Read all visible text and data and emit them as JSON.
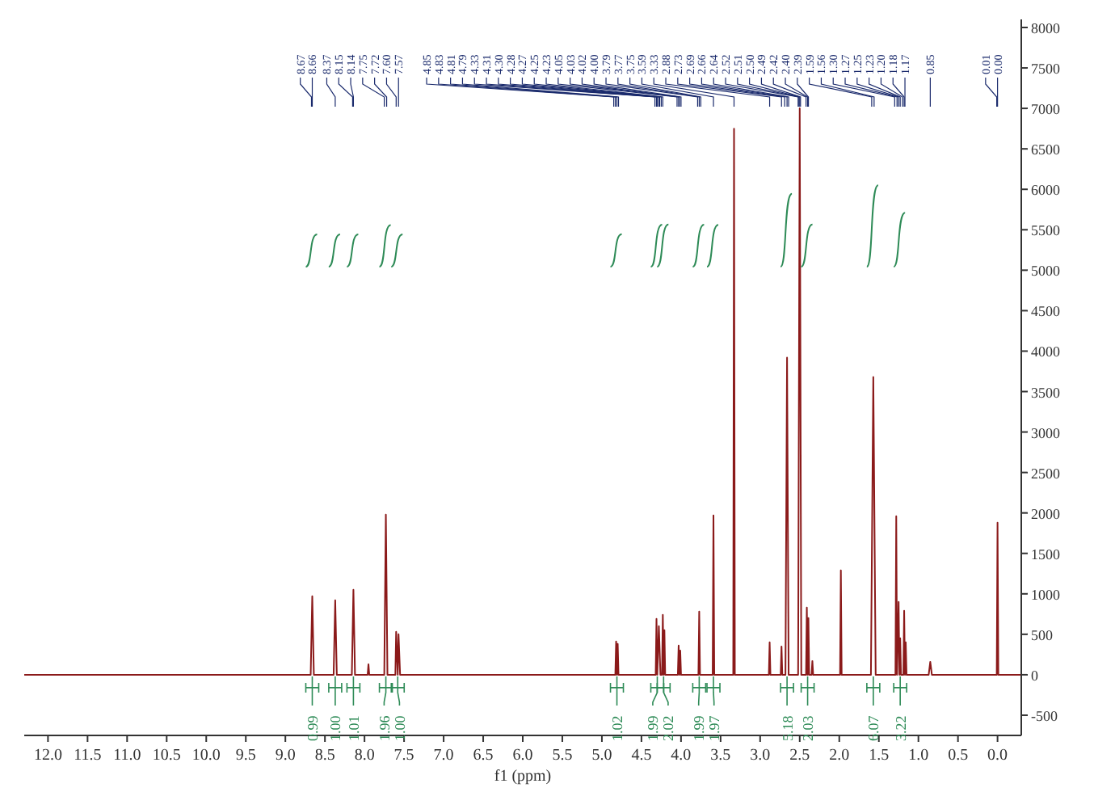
{
  "chart_data": {
    "type": "line",
    "xlabel": "f1 (ppm)",
    "xlim": [
      12.3,
      -0.3
    ],
    "xticks": [
      {
        "value": 12,
        "label": "12.0"
      },
      {
        "value": 11.5,
        "label": "11.5"
      },
      {
        "value": 11,
        "label": "11.0"
      },
      {
        "value": 10.5,
        "label": "10.5"
      },
      {
        "value": 10,
        "label": "10.0"
      },
      {
        "value": 9.5,
        "label": "9.5"
      },
      {
        "value": 9,
        "label": "9.0"
      },
      {
        "value": 8.5,
        "label": "8.5"
      },
      {
        "value": 8,
        "label": "8.0"
      },
      {
        "value": 7.5,
        "label": "7.5"
      },
      {
        "value": 7,
        "label": "7.0"
      },
      {
        "value": 6.5,
        "label": "6.5"
      },
      {
        "value": 6,
        "label": "6.0"
      },
      {
        "value": 5.5,
        "label": "5.5"
      },
      {
        "value": 5,
        "label": "5.0"
      },
      {
        "value": 4.5,
        "label": "4.5"
      },
      {
        "value": 4,
        "label": "4.0"
      },
      {
        "value": 3.5,
        "label": "3.5"
      },
      {
        "value": 3,
        "label": "3.0"
      },
      {
        "value": 2.5,
        "label": "2.5"
      },
      {
        "value": 2,
        "label": "2.0"
      },
      {
        "value": 1.5,
        "label": "1.5"
      },
      {
        "value": 1,
        "label": "1.0"
      },
      {
        "value": 0.5,
        "label": "0.5"
      },
      {
        "value": 0,
        "label": "0.0"
      }
    ],
    "ylim": [
      -750,
      8100
    ],
    "yticks": [
      -500,
      0,
      500,
      1000,
      1500,
      2000,
      2500,
      3000,
      3500,
      4000,
      4500,
      5000,
      5500,
      6000,
      6500,
      7000,
      7500,
      8000
    ],
    "grid": false,
    "marker": "none",
    "line_style": "solid",
    "series": [
      {
        "color": "#8b1a1a",
        "x": [
          12.3,
          8.68,
          8.66,
          8.64,
          8.39,
          8.37,
          8.35,
          8.16,
          8.14,
          8.12,
          7.96,
          7.95,
          7.94,
          7.75,
          7.73,
          7.71,
          7.61,
          7.6,
          7.58,
          7.57,
          7.55,
          4.83,
          4.82,
          4.81,
          4.8,
          4.79,
          4.32,
          4.31,
          4.3,
          4.28,
          4.26,
          4.24,
          4.23,
          4.22,
          4.21,
          4.2,
          4.04,
          4.03,
          4.02,
          4.01,
          4.0,
          3.78,
          3.77,
          3.76,
          3.6,
          3.59,
          3.58,
          3.34,
          3.33,
          3.32,
          2.89,
          2.88,
          2.87,
          2.74,
          2.73,
          2.72,
          2.68,
          2.66,
          2.64,
          2.52,
          2.5,
          2.48,
          2.42,
          2.41,
          2.4,
          2.39,
          2.38,
          2.35,
          2.34,
          2.33,
          1.99,
          1.98,
          1.97,
          1.6,
          1.57,
          1.54,
          1.29,
          1.28,
          1.27,
          1.25,
          1.24,
          1.23,
          1.22,
          1.19,
          1.18,
          1.17,
          1.16,
          1.15,
          0.87,
          0.85,
          0.83,
          0.01,
          0.0,
          -0.01,
          -0.3
        ],
        "values": [
          0,
          0,
          970,
          0,
          0,
          920,
          0,
          0,
          1050,
          0,
          0,
          130,
          0,
          0,
          1980,
          0,
          0,
          530,
          0,
          500,
          0,
          0,
          410,
          0,
          380,
          0,
          0,
          690,
          0,
          600,
          0,
          0,
          740,
          0,
          550,
          0,
          0,
          360,
          0,
          300,
          0,
          0,
          780,
          0,
          0,
          1970,
          0,
          0,
          6750,
          0,
          0,
          400,
          0,
          0,
          350,
          0,
          0,
          3920,
          0,
          0,
          7000,
          0,
          0,
          830,
          0,
          700,
          0,
          0,
          170,
          0,
          0,
          1290,
          0,
          0,
          3680,
          0,
          0,
          1960,
          0,
          900,
          0,
          450,
          0,
          0,
          790,
          0,
          400,
          0,
          0,
          160,
          0,
          0,
          1880,
          0,
          0
        ]
      }
    ],
    "annotations": [
      {
        "text": "8.67",
        "x": 8.67
      },
      {
        "text": "8.66",
        "x": 8.66
      },
      {
        "text": "8.37",
        "x": 8.37
      },
      {
        "text": "8.15",
        "x": 8.15
      },
      {
        "text": "8.14",
        "x": 8.14
      },
      {
        "text": "7.75",
        "x": 7.75
      },
      {
        "text": "7.72",
        "x": 7.72
      },
      {
        "text": "7.60",
        "x": 7.6
      },
      {
        "text": "7.57",
        "x": 7.57
      },
      {
        "text": "4.85",
        "x": 4.85
      },
      {
        "text": "4.83",
        "x": 4.83
      },
      {
        "text": "4.81",
        "x": 4.81
      },
      {
        "text": "4.79",
        "x": 4.79
      },
      {
        "text": "4.33",
        "x": 4.33
      },
      {
        "text": "4.31",
        "x": 4.31
      },
      {
        "text": "4.30",
        "x": 4.3
      },
      {
        "text": "4.28",
        "x": 4.28
      },
      {
        "text": "4.27",
        "x": 4.27
      },
      {
        "text": "4.25",
        "x": 4.25
      },
      {
        "text": "4.23",
        "x": 4.23
      },
      {
        "text": "4.05",
        "x": 4.05
      },
      {
        "text": "4.03",
        "x": 4.03
      },
      {
        "text": "4.02",
        "x": 4.02
      },
      {
        "text": "4.00",
        "x": 4.0
      },
      {
        "text": "3.79",
        "x": 3.79
      },
      {
        "text": "3.77",
        "x": 3.77
      },
      {
        "text": "3.75",
        "x": 3.75
      },
      {
        "text": "3.59",
        "x": 3.59
      },
      {
        "text": "3.33",
        "x": 3.33
      },
      {
        "text": "2.88",
        "x": 2.88
      },
      {
        "text": "2.73",
        "x": 2.73
      },
      {
        "text": "2.69",
        "x": 2.69
      },
      {
        "text": "2.66",
        "x": 2.66
      },
      {
        "text": "2.64",
        "x": 2.64
      },
      {
        "text": "2.52",
        "x": 2.52
      },
      {
        "text": "2.51",
        "x": 2.51
      },
      {
        "text": "2.50",
        "x": 2.5
      },
      {
        "text": "2.49",
        "x": 2.49
      },
      {
        "text": "2.42",
        "x": 2.42
      },
      {
        "text": "2.40",
        "x": 2.4
      },
      {
        "text": "2.39",
        "x": 2.39
      },
      {
        "text": "1.59",
        "x": 1.59
      },
      {
        "text": "1.56",
        "x": 1.56
      },
      {
        "text": "1.30",
        "x": 1.3
      },
      {
        "text": "1.27",
        "x": 1.27
      },
      {
        "text": "1.25",
        "x": 1.25
      },
      {
        "text": "1.23",
        "x": 1.23
      },
      {
        "text": "1.20",
        "x": 1.2
      },
      {
        "text": "1.18",
        "x": 1.18
      },
      {
        "text": "1.17",
        "x": 1.17
      },
      {
        "text": "0.85",
        "x": 0.85
      },
      {
        "text": "0.01",
        "x": 0.01
      },
      {
        "text": "0.00",
        "x": 0.0
      },
      {
        "text": "0.99",
        "x": 8.66
      },
      {
        "text": "1.00",
        "x": 8.37
      },
      {
        "text": "1.01",
        "x": 8.14
      },
      {
        "text": "1.96",
        "x": 7.73
      },
      {
        "text": "1.00",
        "x": 7.58
      },
      {
        "text": "1.02",
        "x": 4.81
      },
      {
        "text": "1.99",
        "x": 4.3
      },
      {
        "text": "2.02",
        "x": 4.22
      },
      {
        "text": "1.99",
        "x": 3.77
      },
      {
        "text": "1.97",
        "x": 3.59
      },
      {
        "text": "5.18",
        "x": 2.66
      },
      {
        "text": "2.03",
        "x": 2.4
      },
      {
        "text": "6.07",
        "x": 1.57
      },
      {
        "text": "3.22",
        "x": 1.23
      }
    ]
  }
}
